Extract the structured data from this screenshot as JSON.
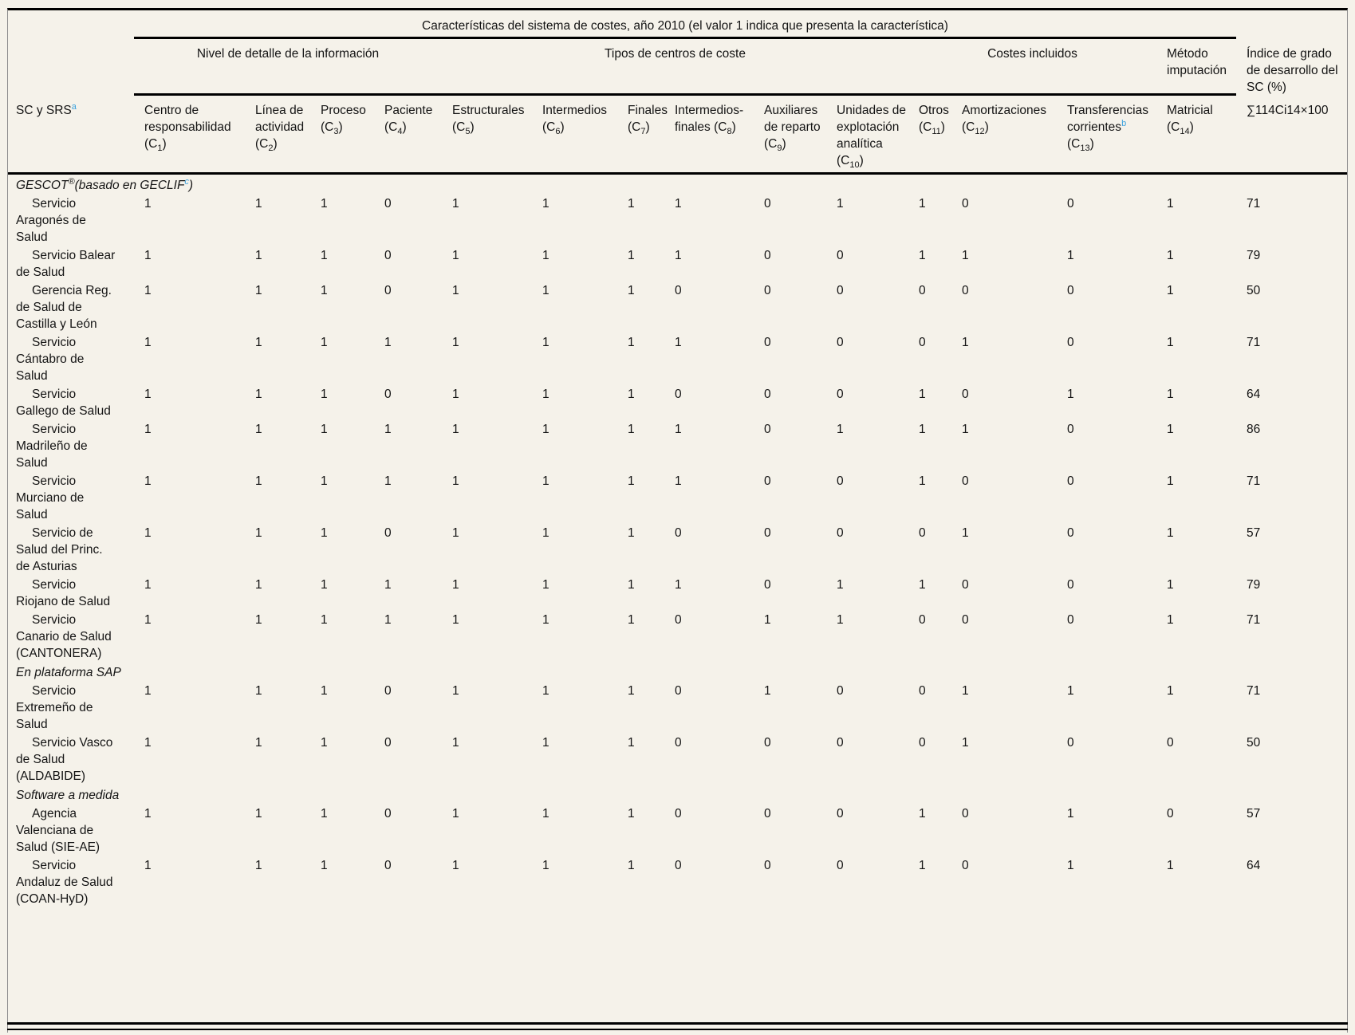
{
  "page": {
    "background": "#f5f2ea",
    "accent_blue": "#3ba1dd"
  },
  "table": {
    "title": "Características del sistema de costes, año 2010 (el valor 1 indica que presenta la característica)",
    "stub_header": {
      "text": "SC y SRS",
      "footnote": "a"
    },
    "groups": [
      {
        "label": "Nivel de detalle de la información",
        "cols": 4,
        "align": "center"
      },
      {
        "label": "Tipos de centros de coste",
        "cols": 6,
        "align": "center"
      },
      {
        "label": "Costes incluidos",
        "cols": 3,
        "align": "center"
      },
      {
        "label": "Método imputación",
        "cols": 1,
        "align": "left"
      }
    ],
    "index_header": "Índice de grado de desarrollo del SC (%)",
    "index_formula": "∑114Ci14×100",
    "columns": [
      {
        "label": "Centro de responsabilidad",
        "code": "C",
        "sub": "1"
      },
      {
        "label": "Línea de actividad",
        "code": "C",
        "sub": "2"
      },
      {
        "label": "Proceso",
        "code": "C",
        "sub": "3"
      },
      {
        "label": "Paciente",
        "code": "C",
        "sub": "4"
      },
      {
        "label": "Estructurales",
        "code": "C",
        "sub": "5"
      },
      {
        "label": "Intermedios",
        "code": "C",
        "sub": "6"
      },
      {
        "label": "Finales",
        "code": "C",
        "sub": "7"
      },
      {
        "label": "Intermedios-finales",
        "code": "C",
        "sub": "8"
      },
      {
        "label": "Auxiliares de reparto",
        "code": "C",
        "sub": "9"
      },
      {
        "label": "Unidades de explotación analítica",
        "code": "C",
        "sub": "10"
      },
      {
        "label": "Otros",
        "code": "C",
        "sub": "11"
      },
      {
        "label": "Amortizaciones",
        "code": "C",
        "sub": "12"
      },
      {
        "label": "Transferencias corrientes",
        "code": "C",
        "sub": "13",
        "footnote": "b"
      },
      {
        "label": "Matricial",
        "code": "C",
        "sub": "14"
      }
    ],
    "sections": [
      {
        "heading_parts": [
          {
            "text": "GESCOT",
            "style": "text"
          },
          {
            "text": "®",
            "style": "sup"
          },
          {
            "text": "(basado en GECLIF",
            "style": "text"
          },
          {
            "text": "c",
            "style": "sup-blue"
          },
          {
            "text": ")",
            "style": "text"
          }
        ],
        "rows": [
          {
            "name": "Servicio Aragonés de Salud",
            "values": [
              1,
              1,
              1,
              0,
              1,
              1,
              1,
              1,
              0,
              1,
              1,
              0,
              0,
              1
            ],
            "index": "71"
          },
          {
            "name": "Servicio Balear de Salud",
            "values": [
              1,
              1,
              1,
              0,
              1,
              1,
              1,
              1,
              0,
              0,
              1,
              1,
              1,
              1
            ],
            "index": "79"
          },
          {
            "name": "Gerencia Reg. de Salud de Castilla y León",
            "values": [
              1,
              1,
              1,
              0,
              1,
              1,
              1,
              0,
              0,
              0,
              0,
              0,
              0,
              1
            ],
            "index": "50"
          },
          {
            "name": "Servicio Cántabro de Salud",
            "values": [
              1,
              1,
              1,
              1,
              1,
              1,
              1,
              1,
              0,
              0,
              0,
              1,
              0,
              1
            ],
            "index": "71"
          },
          {
            "name": "Servicio Gallego de Salud",
            "values": [
              1,
              1,
              1,
              0,
              1,
              1,
              1,
              0,
              0,
              0,
              1,
              0,
              1,
              1
            ],
            "index": "64"
          },
          {
            "name": "Servicio Madrileño de Salud",
            "values": [
              1,
              1,
              1,
              1,
              1,
              1,
              1,
              1,
              0,
              1,
              1,
              1,
              0,
              1
            ],
            "index": "86"
          },
          {
            "name": "Servicio Murciano de Salud",
            "values": [
              1,
              1,
              1,
              1,
              1,
              1,
              1,
              1,
              0,
              0,
              1,
              0,
              0,
              1
            ],
            "index": "71"
          },
          {
            "name": "Servicio de Salud del Princ. de Asturias",
            "values": [
              1,
              1,
              1,
              0,
              1,
              1,
              1,
              0,
              0,
              0,
              0,
              1,
              0,
              1
            ],
            "index": "57"
          },
          {
            "name": "Servicio Riojano de Salud",
            "values": [
              1,
              1,
              1,
              1,
              1,
              1,
              1,
              1,
              0,
              1,
              1,
              0,
              0,
              1
            ],
            "index": "79"
          },
          {
            "name": "Servicio Canario de Salud (CANTONERA)",
            "values": [
              1,
              1,
              1,
              1,
              1,
              1,
              1,
              0,
              1,
              1,
              0,
              0,
              0,
              1
            ],
            "index": "71"
          }
        ]
      },
      {
        "heading_parts": [
          {
            "text": "En plataforma SAP",
            "style": "text"
          }
        ],
        "rows": [
          {
            "name": "Servicio Extremeño de Salud",
            "values": [
              1,
              1,
              1,
              0,
              1,
              1,
              1,
              0,
              1,
              0,
              0,
              1,
              1,
              1
            ],
            "index": "71"
          },
          {
            "name": "Servicio Vasco de Salud (ALDABIDE)",
            "values": [
              1,
              1,
              1,
              0,
              1,
              1,
              1,
              0,
              0,
              0,
              0,
              1,
              0,
              0
            ],
            "index": "50"
          }
        ]
      },
      {
        "heading_parts": [
          {
            "text": "Software a medida",
            "style": "text"
          }
        ],
        "rows": [
          {
            "name": "Agencia Valenciana de Salud (SIE-AE)",
            "values": [
              1,
              1,
              1,
              0,
              1,
              1,
              1,
              0,
              0,
              0,
              1,
              0,
              1,
              0
            ],
            "index": "57"
          },
          {
            "name": "Servicio Andaluz de Salud (COAN-HyD)",
            "values": [
              1,
              1,
              1,
              0,
              1,
              1,
              1,
              0,
              0,
              0,
              1,
              0,
              1,
              1
            ],
            "index": "64"
          }
        ]
      }
    ]
  }
}
